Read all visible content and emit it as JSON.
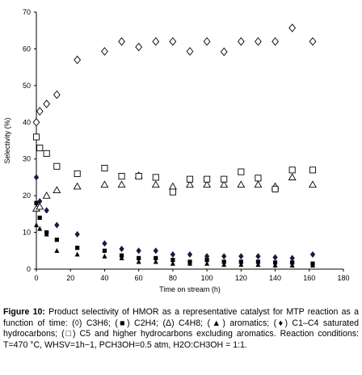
{
  "chart_data": {
    "type": "scatter",
    "xlabel": "Time on stream (h)",
    "ylabel": "Selectivity (%)",
    "xlim": [
      0,
      180
    ],
    "ylim": [
      0,
      70
    ],
    "x_ticks": [
      0,
      20,
      40,
      60,
      80,
      100,
      120,
      140,
      160,
      180
    ],
    "y_ticks": [
      0,
      10,
      20,
      30,
      40,
      50,
      60,
      70
    ],
    "grid": false,
    "legend": "none",
    "series": [
      {
        "marker": "open-diamond",
        "x": [
          0,
          2,
          6,
          12,
          24,
          40,
          50,
          60,
          70,
          80,
          90,
          100,
          110,
          120,
          130,
          140,
          150,
          162
        ],
        "y": [
          40,
          43,
          45,
          47.5,
          57,
          59.3,
          62,
          60.5,
          62,
          62,
          59.3,
          62,
          59.2,
          62,
          62,
          62,
          65.7,
          62
        ]
      },
      {
        "marker": "filled-square",
        "x": [
          0,
          2,
          6,
          12,
          24,
          40,
          50,
          60,
          70,
          80,
          90,
          100,
          110,
          120,
          130,
          140,
          150,
          162
        ],
        "y": [
          18,
          14,
          10,
          8,
          5.8,
          5,
          3.7,
          3,
          3,
          2.5,
          2,
          2.5,
          2,
          2,
          2,
          1.8,
          1.8,
          1.5
        ]
      },
      {
        "marker": "open-triangle",
        "x": [
          0,
          2,
          6,
          12,
          24,
          40,
          50,
          60,
          70,
          80,
          90,
          100,
          110,
          120,
          130,
          140,
          150,
          162
        ],
        "y": [
          16.5,
          17,
          20,
          21.5,
          22.5,
          23,
          23,
          25.5,
          23,
          22.5,
          23,
          23,
          23,
          23,
          23,
          22.5,
          25,
          23
        ]
      },
      {
        "marker": "filled-triangle",
        "x": [
          0,
          2,
          6,
          12,
          24,
          40,
          50,
          60,
          70,
          80,
          90,
          100,
          110,
          120,
          130,
          140,
          150,
          162
        ],
        "y": [
          12,
          11,
          9.5,
          5,
          4,
          3.5,
          3,
          2,
          2,
          1.5,
          1.5,
          1.5,
          1.2,
          1.2,
          1.2,
          1,
          1,
          1
        ]
      },
      {
        "marker": "filled-diamond",
        "x": [
          0,
          2,
          6,
          12,
          24,
          40,
          50,
          60,
          70,
          80,
          90,
          100,
          110,
          120,
          130,
          140,
          150,
          162
        ],
        "y": [
          25,
          18.5,
          16,
          12,
          9.5,
          7,
          5.5,
          5,
          5,
          4,
          4,
          3.5,
          3.5,
          3.5,
          3.5,
          3.2,
          3,
          4
        ]
      },
      {
        "marker": "open-square",
        "x": [
          0,
          2,
          6,
          12,
          24,
          40,
          50,
          60,
          70,
          80,
          90,
          100,
          110,
          120,
          130,
          140,
          150,
          162
        ],
        "y": [
          36,
          33,
          31.5,
          28,
          26,
          27.5,
          25.3,
          25.3,
          25,
          21,
          24.5,
          24.5,
          24.5,
          26.5,
          24.8,
          21.8,
          27,
          27
        ]
      }
    ]
  },
  "caption": {
    "label": "Figure 10:",
    "text": "Product selectivity of HMOR as a representative catalyst for MTP reaction as a function of time: (◊) C3H6; (■) C2H4; (Δ) C4H8; (▲) aromatics; (♦) C1–C4 saturated hydrocarbons; (□) C5 and higher hydrocarbons excluding aromatics. Reaction conditions: T=470 °C, WHSV=1h−1, PCH3OH=0.5 atm, H2O:CH3OH = 1:1."
  }
}
